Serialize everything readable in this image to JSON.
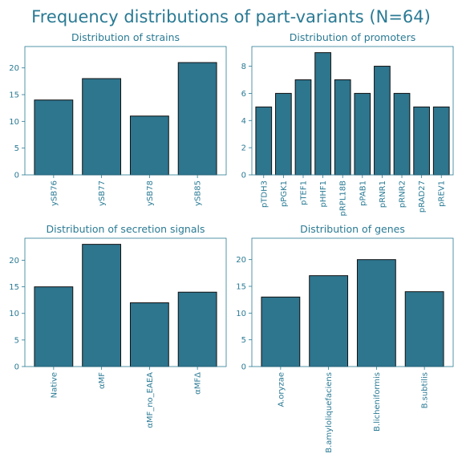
{
  "figure": {
    "title": "Frequency distributions of part-variants (N=64)",
    "text_color": "#2a7a94",
    "bar_color": "#2e758e",
    "bar_edge_color": "#111111",
    "axes_color": "#2a7a94"
  },
  "chart_data": [
    {
      "type": "bar",
      "title": "Distribution of strains",
      "xlabel": "",
      "ylabel": "",
      "categories": [
        "ySB76",
        "ySB77",
        "ySB78",
        "ySB85"
      ],
      "values": [
        14,
        18,
        11,
        21
      ],
      "ylim": [
        0,
        24
      ],
      "yticks": [
        0,
        5,
        10,
        15,
        20
      ],
      "grid": false
    },
    {
      "type": "bar",
      "title": "Distribution of promoters",
      "xlabel": "",
      "ylabel": "",
      "categories": [
        "pTDH3",
        "pPGK1",
        "pTEF1",
        "pHHF1",
        "pRPL18B",
        "pPAB1",
        "pRNR1",
        "pRNR2",
        "pRAD27",
        "pREV1"
      ],
      "values": [
        5,
        6,
        7,
        9,
        7,
        6,
        8,
        6,
        5,
        5
      ],
      "ylim": [
        0,
        9.45
      ],
      "yticks": [
        0,
        2,
        4,
        6,
        8
      ],
      "grid": false
    },
    {
      "type": "bar",
      "title": "Distribution of secretion signals",
      "xlabel": "",
      "ylabel": "",
      "categories": [
        "Native",
        "αMF",
        "αMF_no_EAEA",
        "αMFΔ"
      ],
      "values": [
        15,
        23,
        12,
        14
      ],
      "ylim": [
        0,
        24.15
      ],
      "yticks": [
        0,
        5,
        10,
        15,
        20
      ],
      "grid": false
    },
    {
      "type": "bar",
      "title": "Distribution of genes",
      "xlabel": "",
      "ylabel": "",
      "categories": [
        "A.oryzae",
        "B.amyloliquefaciens",
        "B.licheniformis",
        "B.subtilis"
      ],
      "values": [
        13,
        17,
        20,
        14
      ],
      "ylim": [
        0,
        24
      ],
      "yticks": [
        0,
        5,
        10,
        15,
        20
      ],
      "grid": false
    }
  ]
}
